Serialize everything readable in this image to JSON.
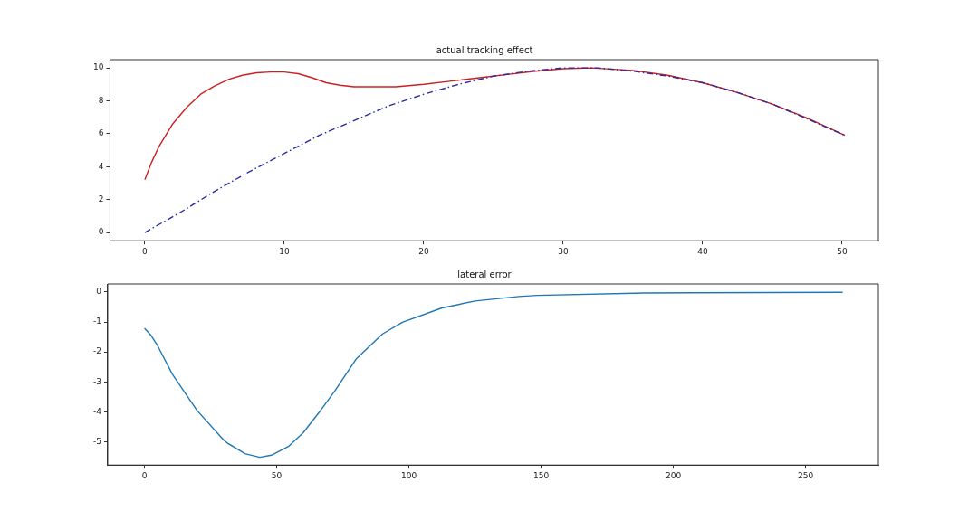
{
  "chart_data": [
    {
      "type": "line",
      "title": "actual tracking effect",
      "xlim": [
        -2.5,
        52.6
      ],
      "xticks": [
        0,
        10,
        20,
        30,
        40,
        50
      ],
      "ylim": [
        -0.5,
        10.5
      ],
      "yticks": [
        0,
        2,
        4,
        6,
        8,
        10
      ],
      "grid": false,
      "legend": false,
      "marker": "none",
      "series": [
        {
          "color": "#2a2aa0",
          "line_style": "dashed",
          "x": [
            0,
            2.5,
            5,
            7.5,
            10,
            12.5,
            15,
            17.5,
            20,
            22.5,
            25,
            27.5,
            30,
            32.5,
            35,
            37.5,
            40,
            42.5,
            45,
            47.5,
            50.2
          ],
          "values": [
            0,
            1.2,
            2.5,
            3.7,
            4.8,
            5.9,
            6.8,
            7.7,
            8.4,
            9.0,
            9.5,
            9.8,
            10.0,
            10.0,
            9.8,
            9.5,
            9.1,
            8.5,
            7.8,
            6.9,
            5.9
          ]
        },
        {
          "color": "#cc2020",
          "line_style": "solid",
          "x": [
            0,
            0.5,
            1,
            2,
            3,
            4,
            5,
            6,
            7,
            8,
            9,
            10,
            11,
            12,
            13,
            14,
            15,
            16,
            18,
            20,
            22,
            24,
            26,
            28,
            30,
            32,
            35,
            37.5,
            40,
            42.5,
            45,
            47.5,
            50.2
          ],
          "values": [
            3.2,
            4.3,
            5.2,
            6.6,
            7.6,
            8.4,
            8.9,
            9.3,
            9.55,
            9.7,
            9.75,
            9.75,
            9.65,
            9.4,
            9.1,
            8.95,
            8.85,
            8.85,
            8.85,
            9.0,
            9.2,
            9.4,
            9.6,
            9.8,
            9.95,
            10.0,
            9.85,
            9.55,
            9.1,
            8.5,
            7.8,
            6.95,
            5.9
          ]
        }
      ]
    },
    {
      "type": "line",
      "title": "lateral error",
      "xlim": [
        -13.9,
        277.5
      ],
      "xticks": [
        0,
        50,
        100,
        150,
        200,
        250
      ],
      "ylim": [
        -5.78,
        0.27
      ],
      "yticks": [
        -5,
        -4,
        -3,
        -2,
        -1,
        0
      ],
      "grid": false,
      "legend": false,
      "marker": "none",
      "series": [
        {
          "color": "#1f77b4",
          "line_style": "solid",
          "x": [
            0,
            2.4,
            5,
            10.5,
            19.8,
            30,
            31.4,
            38,
            43.6,
            48,
            54.6,
            60,
            66.2,
            72,
            80,
            90,
            97.5,
            112.5,
            125,
            141.5,
            148.5,
            189,
            264
          ],
          "values": [
            -1.21,
            -1.44,
            -1.8,
            -2.74,
            -3.95,
            -4.95,
            -5.05,
            -5.4,
            -5.52,
            -5.45,
            -5.15,
            -4.7,
            -4.0,
            -3.3,
            -2.24,
            -1.4,
            -1.01,
            -0.53,
            -0.3,
            -0.15,
            -0.11,
            -0.03,
            -0.01
          ]
        }
      ]
    }
  ]
}
